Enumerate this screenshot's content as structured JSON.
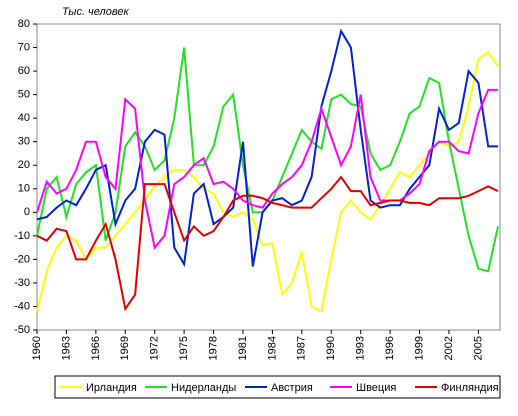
{
  "chart_data": {
    "type": "line",
    "y_label": "Тыс. человек",
    "x": [
      1960,
      1961,
      1962,
      1963,
      1964,
      1965,
      1966,
      1967,
      1968,
      1969,
      1970,
      1971,
      1972,
      1973,
      1974,
      1975,
      1976,
      1977,
      1978,
      1979,
      1980,
      1981,
      1982,
      1983,
      1984,
      1985,
      1986,
      1987,
      1988,
      1989,
      1990,
      1991,
      1992,
      1993,
      1994,
      1995,
      1996,
      1997,
      1998,
      1999,
      2000,
      2001,
      2002,
      2003,
      2004,
      2005,
      2006,
      2007
    ],
    "xlim": [
      1960,
      2007
    ],
    "xticks": [
      1960,
      1963,
      1966,
      1969,
      1972,
      1975,
      1978,
      1981,
      1984,
      1987,
      1990,
      1993,
      1996,
      1999,
      2002,
      2005
    ],
    "ylim": [
      -50,
      80
    ],
    "yticks": [
      -50,
      -40,
      -30,
      -20,
      -10,
      0,
      10,
      20,
      30,
      40,
      50,
      60,
      70,
      80
    ],
    "legend": "bottom",
    "series": [
      {
        "name": "Ирландия",
        "color": "#ffff00",
        "values": [
          -42,
          -25,
          -15,
          -10,
          -12,
          -20,
          -15,
          -15,
          -10,
          -5,
          0,
          5,
          11,
          15,
          18,
          18,
          15,
          10,
          8,
          0,
          -2,
          0,
          -3,
          -14,
          -13,
          -35,
          -30,
          -17,
          -40,
          -42,
          -20,
          0,
          5,
          0,
          -3,
          3,
          10,
          17,
          15,
          20,
          25,
          30,
          28,
          30,
          45,
          65,
          68,
          62
        ]
      },
      {
        "name": "Нидерланды",
        "color": "#22e022",
        "values": [
          -10,
          10,
          15,
          -2,
          12,
          17,
          20,
          -12,
          0,
          28,
          34,
          28,
          18,
          22,
          40,
          70,
          20,
          20,
          28,
          45,
          50,
          20,
          0,
          0,
          5,
          15,
          25,
          35,
          30,
          27,
          48,
          50,
          46,
          45,
          25,
          18,
          20,
          30,
          42,
          45,
          57,
          55,
          30,
          10,
          -10,
          -24,
          -25,
          -6
        ]
      },
      {
        "name": "Австрия",
        "color": "#0022cc",
        "values": [
          -3,
          -2,
          2,
          5,
          3,
          10,
          18,
          20,
          -5,
          5,
          10,
          30,
          35,
          33,
          -15,
          -22,
          8,
          12,
          -5,
          -2,
          2,
          30,
          -23,
          0,
          5,
          6,
          3,
          5,
          15,
          45,
          60,
          77,
          70,
          35,
          5,
          2,
          3,
          3,
          10,
          15,
          20,
          44,
          35,
          38,
          60,
          55,
          28,
          28
        ]
      },
      {
        "name": "Швеция",
        "color": "#ff00ff",
        "values": [
          0,
          13,
          8,
          10,
          18,
          30,
          30,
          15,
          10,
          48,
          44,
          5,
          -15,
          -10,
          12,
          15,
          20,
          23,
          12,
          13,
          10,
          5,
          3,
          2,
          8,
          12,
          15,
          20,
          30,
          44,
          32,
          20,
          28,
          50,
          15,
          5,
          5,
          5,
          8,
          12,
          26,
          30,
          30,
          26,
          25,
          42,
          52,
          52
        ]
      },
      {
        "name": "Финляндия",
        "color": "#dd0000",
        "values": [
          -10,
          -12,
          -7,
          -8,
          -20,
          -20,
          -12,
          -5,
          -20,
          -41,
          -35,
          12,
          12,
          12,
          0,
          -12,
          -6,
          -10,
          -8,
          -2,
          5,
          7,
          7,
          6,
          4,
          3,
          2,
          2,
          2,
          6,
          10,
          15,
          9,
          9,
          3,
          4,
          5,
          5,
          4,
          4,
          3,
          6,
          6,
          6,
          7,
          9,
          11,
          9
        ]
      }
    ]
  }
}
